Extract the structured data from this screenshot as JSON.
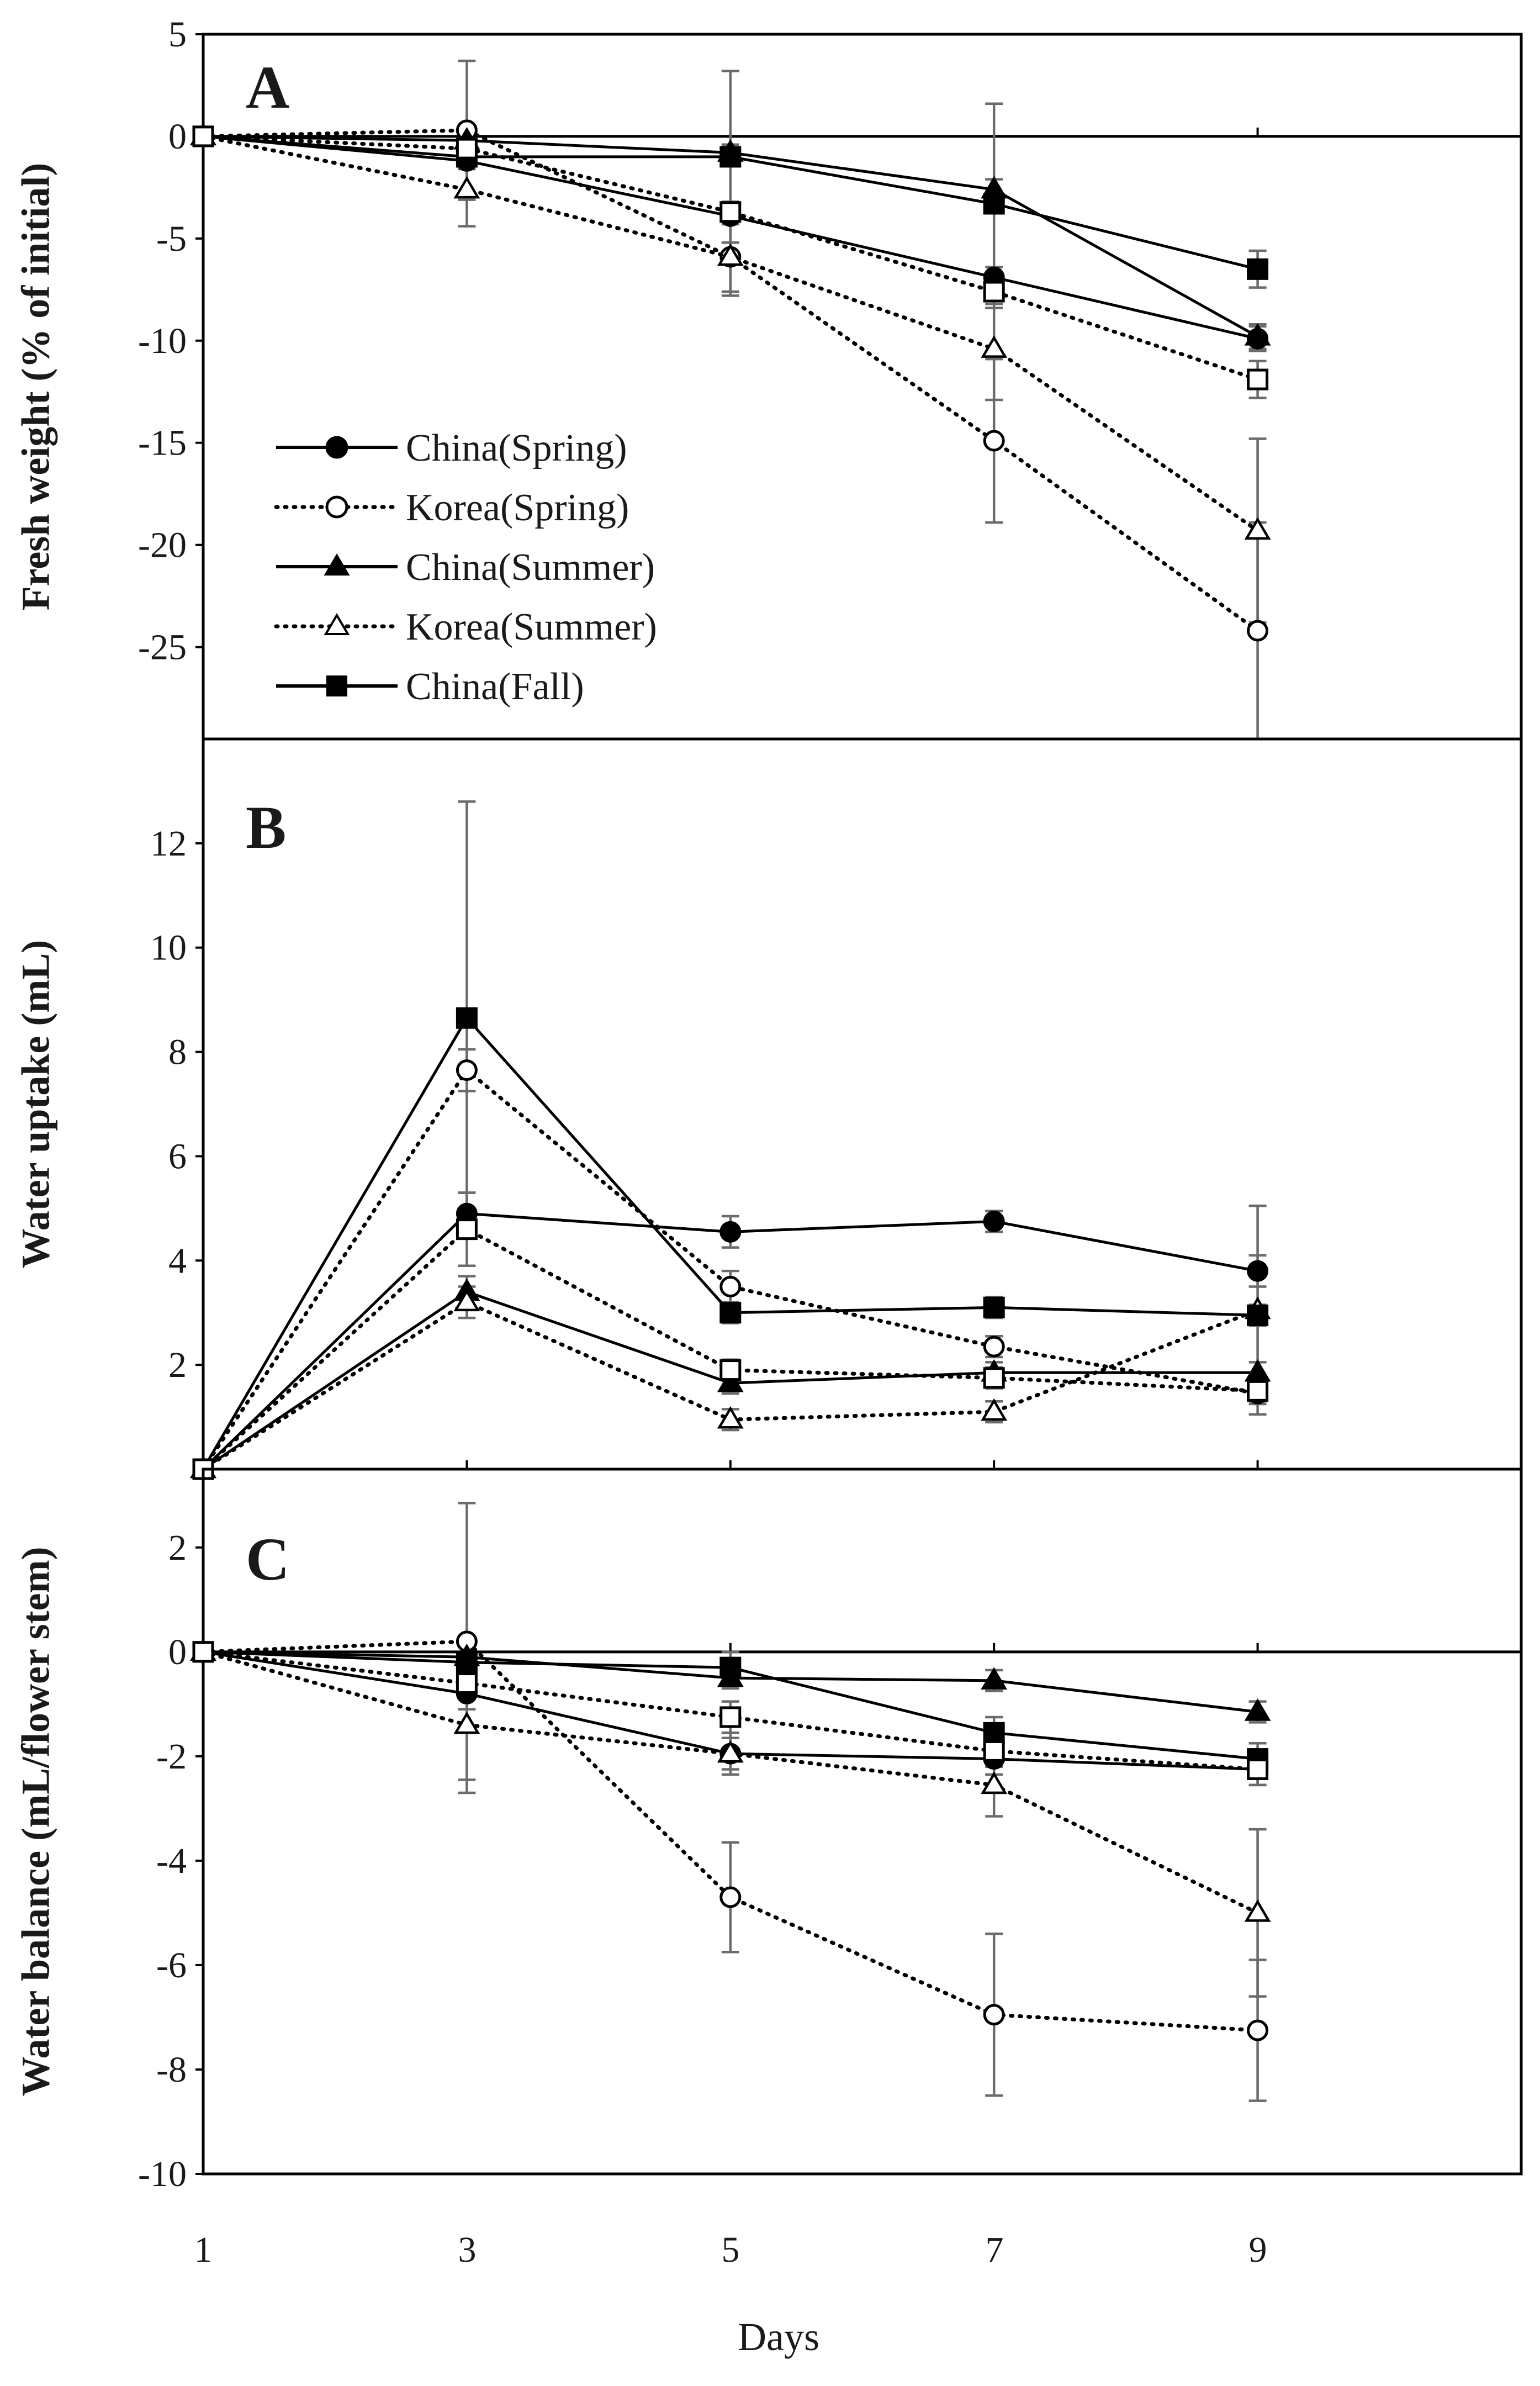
{
  "figure": {
    "xlabel": "Days",
    "x_ticks": [
      1,
      3,
      5,
      7,
      9
    ]
  },
  "legend": {
    "items": [
      {
        "label": "China(Spring)",
        "line": "solid",
        "marker": "circle",
        "filled": true
      },
      {
        "label": "Korea(Spring)",
        "line": "dotted",
        "marker": "circle",
        "filled": false
      },
      {
        "label": "China(Summer)",
        "line": "solid",
        "marker": "triangle",
        "filled": true
      },
      {
        "label": "Korea(Summer)",
        "line": "dotted",
        "marker": "triangle",
        "filled": false
      },
      {
        "label": "China(Fall)",
        "line": "solid",
        "marker": "square",
        "filled": true
      }
    ]
  },
  "chart_data": [
    {
      "type": "line",
      "panel": "A",
      "title": "",
      "xlabel": "Days",
      "ylabel": "Fresh weight (% of initial)",
      "x": [
        1,
        3,
        5,
        7,
        9
      ],
      "xlim": [
        1,
        11
      ],
      "ylim": [
        -29.5,
        5
      ],
      "yticks": [
        5,
        0,
        -5,
        -10,
        -15,
        -20,
        -25
      ],
      "series": [
        {
          "name": "China(Spring)",
          "line": "solid",
          "marker": "circle",
          "filled": true,
          "values": [
            0,
            -1.2,
            -3.9,
            -6.9,
            -9.9
          ],
          "errors": [
            0,
            0.4,
            0.4,
            0.5,
            0.6
          ]
        },
        {
          "name": "Korea(Spring)",
          "line": "dotted",
          "marker": "circle",
          "filled": false,
          "values": [
            0,
            0.3,
            -5.9,
            -14.9,
            -24.2
          ],
          "errors": [
            0,
            3.4,
            1.9,
            4.0,
            5.3
          ]
        },
        {
          "name": "China(Summer)",
          "line": "solid",
          "marker": "triangle",
          "filled": true,
          "values": [
            0,
            -0.2,
            -0.8,
            -2.6,
            -9.8
          ],
          "errors": [
            0,
            0.3,
            0.4,
            0.5,
            0.6
          ]
        },
        {
          "name": "Korea(Summer)",
          "line": "dotted",
          "marker": "triangle",
          "filled": false,
          "values": [
            0,
            -2.6,
            -5.9,
            -10.4,
            -19.3
          ],
          "errors": [
            0,
            1.8,
            1.7,
            2.5,
            4.5
          ]
        },
        {
          "name": "China(Fall)",
          "line": "solid",
          "marker": "square",
          "filled": true,
          "values": [
            0,
            -1.0,
            -1.0,
            -3.3,
            -6.5
          ],
          "errors": [
            0,
            0.4,
            4.2,
            4.9,
            0.9
          ]
        },
        {
          "name": "",
          "line": "dotted",
          "marker": "square",
          "filled": false,
          "values": [
            0,
            -0.6,
            -3.7,
            -7.6,
            -11.9
          ],
          "errors": [
            0,
            0.4,
            0.5,
            0.8,
            0.9
          ]
        }
      ]
    },
    {
      "type": "line",
      "panel": "B",
      "title": "",
      "xlabel": "Days",
      "ylabel": "Water uptake (mL)",
      "x": [
        1,
        3,
        5,
        7,
        9
      ],
      "xlim": [
        1,
        11
      ],
      "ylim": [
        0,
        14
      ],
      "yticks": [
        2,
        4,
        6,
        8,
        10,
        12
      ],
      "series": [
        {
          "name": "China(Spring)",
          "line": "solid",
          "marker": "circle",
          "filled": true,
          "values": [
            0,
            4.9,
            4.55,
            4.75,
            3.8
          ],
          "errors": [
            0,
            0.4,
            0.3,
            0.2,
            0.3
          ]
        },
        {
          "name": "Korea(Spring)",
          "line": "dotted",
          "marker": "circle",
          "filled": false,
          "values": [
            0,
            7.65,
            3.5,
            2.35,
            1.45
          ],
          "errors": [
            0,
            0.4,
            0.3,
            0.2,
            0.2
          ]
        },
        {
          "name": "China(Summer)",
          "line": "solid",
          "marker": "triangle",
          "filled": true,
          "values": [
            0,
            3.4,
            1.65,
            1.85,
            1.85
          ],
          "errors": [
            0,
            0.3,
            0.2,
            0.2,
            0.2
          ]
        },
        {
          "name": "Korea(Summer)",
          "line": "dotted",
          "marker": "triangle",
          "filled": false,
          "values": [
            0,
            3.2,
            0.95,
            1.1,
            3.05
          ],
          "errors": [
            0,
            0.3,
            0.2,
            0.2,
            2.0
          ]
        },
        {
          "name": "China(Fall)",
          "line": "solid",
          "marker": "square",
          "filled": true,
          "values": [
            0,
            8.65,
            3.0,
            3.1,
            2.95
          ],
          "errors": [
            0,
            4.15,
            0.2,
            0.2,
            0.2
          ]
        },
        {
          "name": "",
          "line": "dotted",
          "marker": "square",
          "filled": false,
          "values": [
            0,
            4.6,
            1.9,
            1.75,
            1.5
          ],
          "errors": [
            0,
            0.7,
            0.2,
            0.2,
            0.2
          ]
        }
      ]
    },
    {
      "type": "line",
      "panel": "C",
      "title": "",
      "xlabel": "Days",
      "ylabel": "Water balance (mL/flower stem)",
      "x": [
        1,
        3,
        5,
        7,
        9
      ],
      "xlim": [
        1,
        11
      ],
      "ylim": [
        -10,
        3.5
      ],
      "yticks": [
        2,
        0,
        -2,
        -4,
        -6,
        -8,
        -10
      ],
      "series": [
        {
          "name": "China(Spring)",
          "line": "solid",
          "marker": "circle",
          "filled": true,
          "values": [
            0,
            -0.8,
            -1.95,
            -2.05,
            -2.25
          ],
          "errors": [
            0,
            0.3,
            0.3,
            0.3,
            0.3
          ]
        },
        {
          "name": "Korea(Spring)",
          "line": "dotted",
          "marker": "circle",
          "filled": false,
          "values": [
            0,
            0.2,
            -4.7,
            -6.95,
            -7.25
          ],
          "errors": [
            0,
            2.65,
            1.05,
            1.55,
            1.35
          ]
        },
        {
          "name": "China(Summer)",
          "line": "solid",
          "marker": "triangle",
          "filled": true,
          "values": [
            0,
            -0.1,
            -0.5,
            -0.55,
            -1.15
          ],
          "errors": [
            0,
            0.2,
            0.2,
            0.2,
            0.2
          ]
        },
        {
          "name": "Korea(Summer)",
          "line": "dotted",
          "marker": "triangle",
          "filled": false,
          "values": [
            0,
            -1.4,
            -1.95,
            -2.55,
            -5.0
          ],
          "errors": [
            0,
            1.3,
            0.4,
            0.6,
            1.6
          ]
        },
        {
          "name": "China(Fall)",
          "line": "solid",
          "marker": "square",
          "filled": true,
          "values": [
            0,
            -0.2,
            -0.3,
            -1.55,
            -2.05
          ],
          "errors": [
            0,
            0.3,
            0.3,
            0.3,
            0.3
          ]
        },
        {
          "name": "",
          "line": "dotted",
          "marker": "square",
          "filled": false,
          "values": [
            0,
            -0.6,
            -1.25,
            -1.9,
            -2.25
          ],
          "errors": [
            0,
            0.3,
            0.3,
            0.3,
            0.3
          ]
        }
      ]
    }
  ]
}
